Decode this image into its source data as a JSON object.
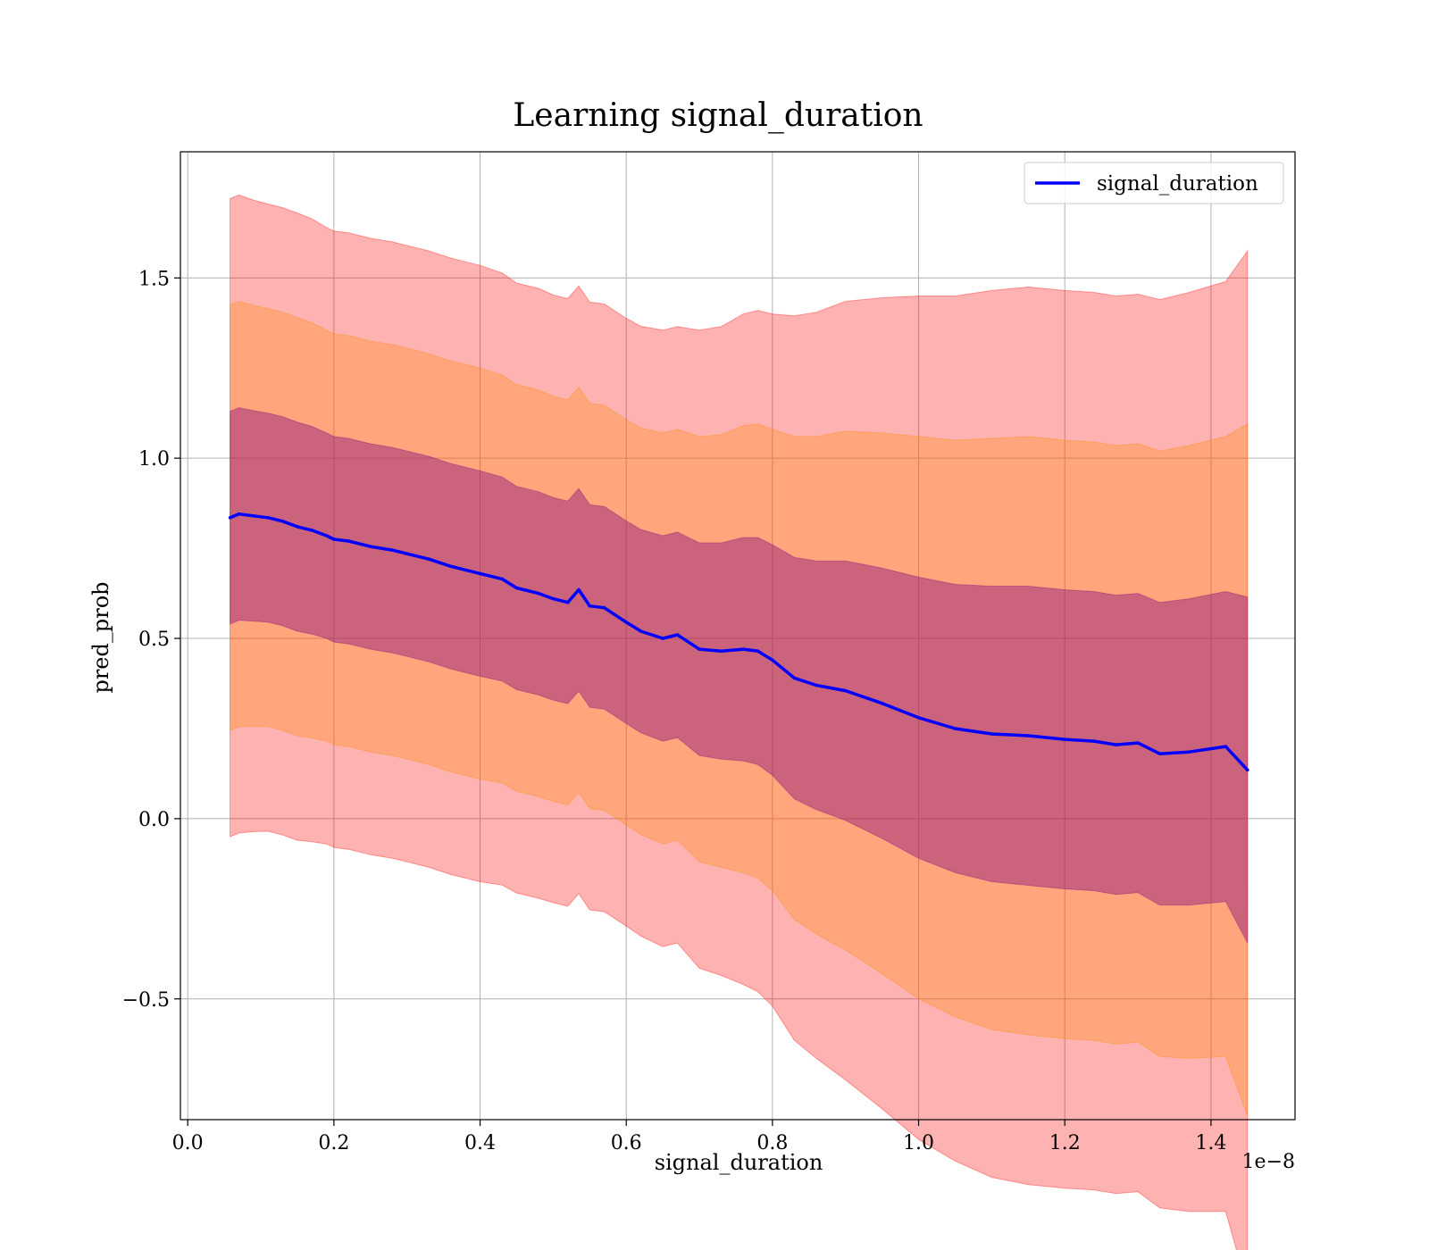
{
  "chart_data": {
    "type": "line",
    "title": "Learning signal_duration",
    "xlabel": "signal_duration",
    "ylabel": "pred_prob",
    "x_offset_label": "1e−8",
    "xlim": [
      -0.01,
      1.515
    ],
    "ylim": [
      -0.835,
      1.85
    ],
    "grid": true,
    "legend": {
      "placement": "top-right",
      "entries": [
        "signal_duration"
      ]
    },
    "x_ticks": [
      0.0,
      0.2,
      0.4,
      0.6,
      0.8,
      1.0,
      1.2,
      1.4
    ],
    "x_tick_labels": [
      "0.0",
      "0.2",
      "0.4",
      "0.6",
      "0.8",
      "1.0",
      "1.2",
      "1.4"
    ],
    "y_ticks": [
      -0.5,
      0.0,
      0.5,
      1.0,
      1.5
    ],
    "y_tick_labels": [
      "−0.5",
      "0.0",
      "0.5",
      "1.0",
      "1.5"
    ],
    "colors": {
      "line": "#0000ff",
      "band_outer": "#ff0000",
      "band_middle": "#ff8c00",
      "band_inner": "#800080",
      "grid": "#b0b0b0"
    },
    "bands": [
      {
        "name": "band-3sd",
        "k": 3,
        "color": "#ff0000",
        "opacity": 0.3
      },
      {
        "name": "band-2sd",
        "k": 2,
        "color": "#ff8c00",
        "opacity": 0.3
      },
      {
        "name": "band-1sd",
        "k": 1,
        "color": "#800080",
        "opacity": 0.4
      }
    ],
    "series": [
      {
        "name": "signal_duration",
        "x": [
          0.058,
          0.07,
          0.09,
          0.11,
          0.13,
          0.15,
          0.17,
          0.19,
          0.2,
          0.22,
          0.25,
          0.28,
          0.3,
          0.33,
          0.36,
          0.4,
          0.43,
          0.45,
          0.48,
          0.5,
          0.52,
          0.535,
          0.55,
          0.57,
          0.6,
          0.62,
          0.65,
          0.67,
          0.7,
          0.73,
          0.76,
          0.78,
          0.8,
          0.83,
          0.86,
          0.9,
          0.95,
          1.0,
          1.05,
          1.1,
          1.15,
          1.2,
          1.24,
          1.27,
          1.3,
          1.33,
          1.37,
          1.42,
          1.45
        ],
        "y": [
          0.835,
          0.845,
          0.84,
          0.835,
          0.825,
          0.81,
          0.8,
          0.785,
          0.775,
          0.77,
          0.755,
          0.745,
          0.735,
          0.72,
          0.7,
          0.68,
          0.665,
          0.64,
          0.625,
          0.61,
          0.6,
          0.635,
          0.59,
          0.585,
          0.545,
          0.52,
          0.5,
          0.51,
          0.47,
          0.465,
          0.47,
          0.465,
          0.44,
          0.39,
          0.37,
          0.355,
          0.32,
          0.28,
          0.25,
          0.235,
          0.23,
          0.22,
          0.215,
          0.205,
          0.21,
          0.18,
          0.185,
          0.2,
          0.135
        ],
        "sd": [
          0.295,
          0.295,
          0.292,
          0.29,
          0.29,
          0.29,
          0.288,
          0.285,
          0.285,
          0.285,
          0.285,
          0.285,
          0.285,
          0.285,
          0.285,
          0.285,
          0.283,
          0.282,
          0.282,
          0.281,
          0.281,
          0.281,
          0.281,
          0.281,
          0.281,
          0.282,
          0.285,
          0.285,
          0.295,
          0.3,
          0.31,
          0.315,
          0.32,
          0.335,
          0.345,
          0.36,
          0.375,
          0.39,
          0.4,
          0.41,
          0.415,
          0.415,
          0.415,
          0.415,
          0.415,
          0.42,
          0.425,
          0.43,
          0.48
        ]
      }
    ]
  }
}
